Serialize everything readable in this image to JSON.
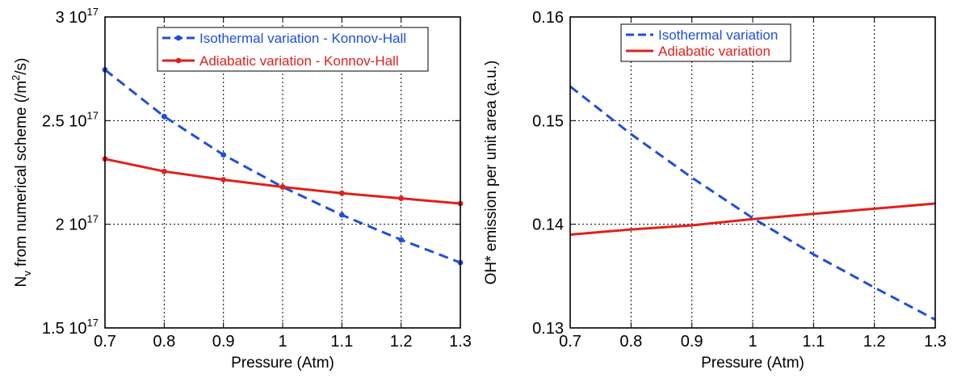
{
  "charts": [
    {
      "type": "line",
      "xlabel": "Pressure (Atm)",
      "ylabel_parts": {
        "pre": "N",
        "sub": "v",
        "mid": " from numerical scheme (/m",
        "sup": "2",
        "post": "/s)"
      },
      "xlim": [
        0.7,
        1.3
      ],
      "ylim": [
        1.5e+17,
        3e+17
      ],
      "x_ticks": [
        "0.7",
        "0.8",
        "0.9",
        "1",
        "1.1",
        "1.2",
        "1.3"
      ],
      "y_ticks": [
        {
          "value": 1.5e+17,
          "mant": "1.5 10",
          "exp": "17"
        },
        {
          "value": 2e+17,
          "mant": "2 10",
          "exp": "17"
        },
        {
          "value": 2.5e+17,
          "mant": "2.5 10",
          "exp": "17"
        },
        {
          "value": 3e+17,
          "mant": "3 10",
          "exp": "17"
        }
      ],
      "grid": true,
      "legend_position": "top-right",
      "series": [
        {
          "name": "Isothermal variation - Konnov-Hall",
          "color": "#1f4fd8",
          "style": "dashed",
          "markers": true,
          "x": [
            0.7,
            0.8,
            0.9,
            1.0,
            1.1,
            1.2,
            1.3
          ],
          "y": [
            2.745e+17,
            2.52e+17,
            2.335e+17,
            2.18e+17,
            2.045e+17,
            1.925e+17,
            1.815e+17
          ]
        },
        {
          "name": "Adiabatic variation -  Konnov-Hall",
          "color": "#e0211c",
          "style": "solid",
          "markers": true,
          "x": [
            0.7,
            0.8,
            0.9,
            1.0,
            1.1,
            1.2,
            1.3
          ],
          "y": [
            2.315e+17,
            2.255e+17,
            2.215e+17,
            2.18e+17,
            2.15e+17,
            2.125e+17,
            2.1e+17
          ]
        }
      ]
    },
    {
      "type": "line",
      "xlabel": "Pressure (Atm)",
      "ylabel": "OH* emission per unit area (a.u.)",
      "xlim": [
        0.7,
        1.3
      ],
      "ylim": [
        0.13,
        0.16
      ],
      "x_ticks": [
        "0.7",
        "0.8",
        "0.9",
        "1",
        "1.1",
        "1.2",
        "1.3"
      ],
      "y_ticks": [
        {
          "value": 0.13,
          "label": "0.13"
        },
        {
          "value": 0.14,
          "label": "0.14"
        },
        {
          "value": 0.15,
          "label": "0.15"
        },
        {
          "value": 0.16,
          "label": "0.16"
        }
      ],
      "grid": true,
      "legend_position": "top-right",
      "series": [
        {
          "name": "Isothermal variation",
          "color": "#1f4fd8",
          "style": "dashed",
          "markers": false,
          "x": [
            0.7,
            0.8,
            0.9,
            1.0,
            1.1,
            1.2,
            1.3
          ],
          "y": [
            0.1533,
            0.1487,
            0.1445,
            0.1406,
            0.1371,
            0.1339,
            0.1308
          ]
        },
        {
          "name": "Adiabatic variation",
          "color": "#e0211c",
          "style": "solid",
          "markers": false,
          "x": [
            0.7,
            0.8,
            0.9,
            1.0,
            1.1,
            1.2,
            1.3
          ],
          "y": [
            0.139,
            0.1395,
            0.1399,
            0.1405,
            0.141,
            0.1415,
            0.142
          ]
        }
      ]
    }
  ]
}
